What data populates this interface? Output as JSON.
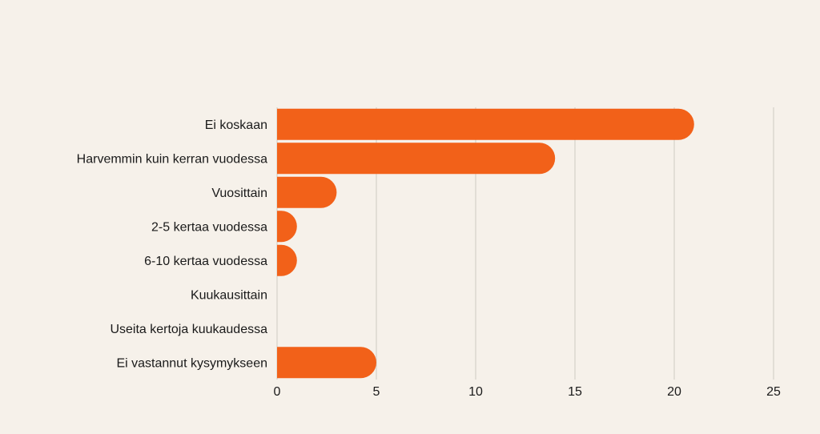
{
  "chart_data": {
    "type": "bar",
    "orientation": "horizontal",
    "categories": [
      "Ei koskaan",
      "Harvemmin kuin kerran vuodessa",
      "Vuosittain",
      "2-5 kertaa vuodessa",
      "6-10 kertaa vuodessa",
      "Kuukausittain",
      "Useita kertoja kuukaudessa",
      "Ei vastannut kysymykseen"
    ],
    "values": [
      21,
      14,
      3,
      1,
      1,
      0,
      0,
      5
    ],
    "xlim": [
      0,
      25
    ],
    "xticks": [
      "0",
      "5",
      "10",
      "15",
      "20",
      "25"
    ],
    "grid": "vertical",
    "bar_color": "#f26119",
    "background_color": "#f6f1ea",
    "grid_color": "#cfcac2"
  }
}
